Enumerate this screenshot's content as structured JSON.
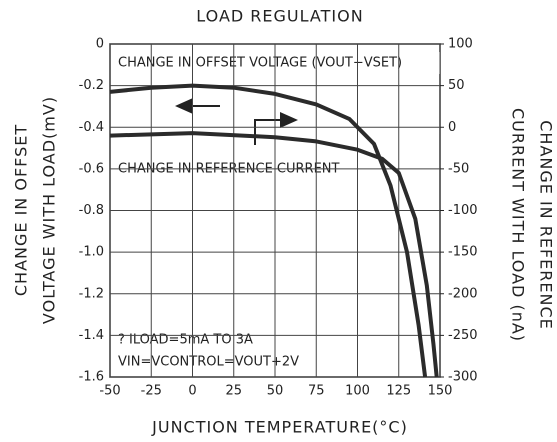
{
  "chart_data": {
    "type": "line",
    "title": "LOAD REGULATION",
    "x_label": "JUNCTION TEMPERATURE(°C)",
    "y_label": [
      "CHANGE IN OFFSET",
      "VOLTAGE WITH LOAD(mV)"
    ],
    "y2_label": [
      "CHANGE IN REFERENCE",
      "CURRENT WITH LOAD (nA)"
    ],
    "annotations": [
      "CHANGE IN OFFSET VOLTAGE (VOUT−VSET)",
      "CHANGE IN REFERENCE CURRENT",
      "? ILOAD=5mA TO 3A",
      "VIN=VCONTROL=VOUT+2V"
    ],
    "xlim": [
      -50,
      150
    ],
    "xticks": [
      -50,
      -25,
      0,
      25,
      50,
      75,
      100,
      125,
      150
    ],
    "ylim": [
      -1.6,
      0
    ],
    "yticks": [
      0,
      -0.2,
      -0.4,
      -0.6,
      -0.8,
      {
        "value": -1,
        "label": "-1.0"
      },
      -1.2,
      -1.4,
      -1.6
    ],
    "y2lim": [
      -300,
      100
    ],
    "y2ticks": [
      100,
      50,
      0,
      -50,
      -100,
      -150,
      -200,
      -250,
      -300
    ],
    "grid": true,
    "series": [
      {
        "name": "CHANGE IN OFFSET VOLTAGE (VOUT−VSET)",
        "color": "#2b2b2b",
        "x": [
          -50,
          -25,
          0,
          25,
          50,
          75,
          95,
          110,
          120,
          130,
          137,
          141
        ],
        "values": [
          -0.23,
          -0.21,
          -0.2,
          -0.21,
          -0.24,
          -0.29,
          -0.36,
          -0.48,
          -0.68,
          -1.0,
          -1.35,
          -1.6
        ]
      },
      {
        "name": "CHANGE IN REFERENCE CURRENT",
        "color": "#2b2b2b",
        "axis": "y2",
        "x": [
          -50,
          0,
          50,
          75,
          100,
          115,
          125,
          135,
          142,
          146,
          148
        ],
        "values": [
          -10,
          -7,
          -12,
          -17,
          -27,
          -38,
          -55,
          -110,
          -190,
          -260,
          -300
        ]
      }
    ]
  }
}
